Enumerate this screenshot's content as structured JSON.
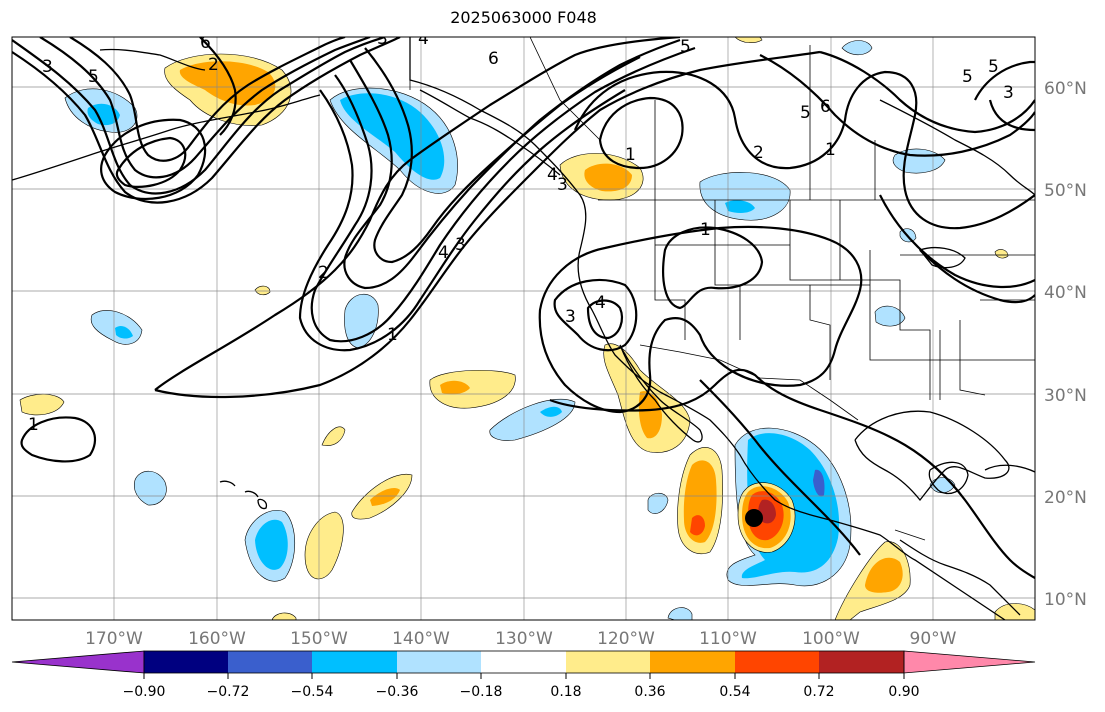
{
  "title": "2025063000 F048",
  "map": {
    "lat_labels": [
      "60°N",
      "50°N",
      "40°N",
      "30°N",
      "20°N",
      "10°N"
    ],
    "lon_labels": [
      "170°W",
      "160°W",
      "150°W",
      "140°W",
      "130°W",
      "120°W",
      "110°W",
      "100°W",
      "90°W"
    ],
    "contour_labels": [
      "3",
      "5",
      "6",
      "2",
      "6",
      "5",
      "4",
      "3",
      "4",
      "3",
      "5",
      "6",
      "2",
      "1",
      "1",
      "2",
      "1",
      "4",
      "3",
      "3",
      "4",
      "1",
      "1",
      "5",
      "5",
      "3"
    ],
    "colorbar": {
      "ticks": [
        "−0.90",
        "−0.72",
        "−0.54",
        "−0.36",
        "−0.18",
        "0.18",
        "0.36",
        "0.54",
        "0.72",
        "0.90"
      ],
      "colors": [
        "#9932cc",
        "#000080",
        "#3a5fcd",
        "#00bfff",
        "#b0e2ff",
        "#ffffff",
        "#ffec8b",
        "#ffa500",
        "#ff4500",
        "#b22222",
        "#ff88aa"
      ]
    },
    "marker_color": "#000000"
  }
}
